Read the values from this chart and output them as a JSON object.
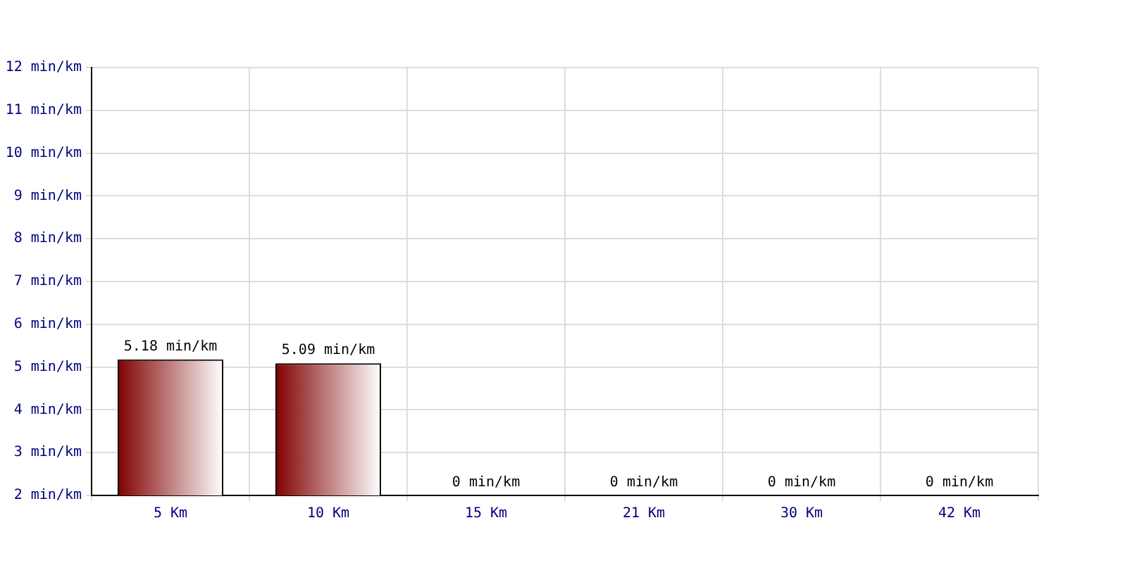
{
  "chart_data": {
    "type": "bar",
    "categories": [
      "5 Km",
      "10 Km",
      "15 Km",
      "21 Km",
      "30 Km",
      "42 Km"
    ],
    "values": [
      5.18,
      5.09,
      null,
      null,
      null,
      null
    ],
    "value_labels": [
      "5.18 min/km",
      "5.09 min/km",
      "0 min/km",
      "0 min/km",
      "0 min/km",
      "0 min/km"
    ],
    "color": "#800000",
    "ylim": [
      2,
      12
    ],
    "yticks": [
      {
        "value": 2,
        "label": "2 min/km"
      },
      {
        "value": 3,
        "label": "3 min/km"
      },
      {
        "value": 4,
        "label": "4 min/km"
      },
      {
        "value": 5,
        "label": "5 min/km"
      },
      {
        "value": 6,
        "label": "6 min/km"
      },
      {
        "value": 7,
        "label": "7 min/km"
      },
      {
        "value": 8,
        "label": "8 min/km"
      },
      {
        "value": 9,
        "label": "9 min/km"
      },
      {
        "value": 10,
        "label": "10 min/km"
      },
      {
        "value": 11,
        "label": "11 min/km"
      },
      {
        "value": 12,
        "label": "12 min/km"
      }
    ],
    "grid": true,
    "legend": false
  }
}
